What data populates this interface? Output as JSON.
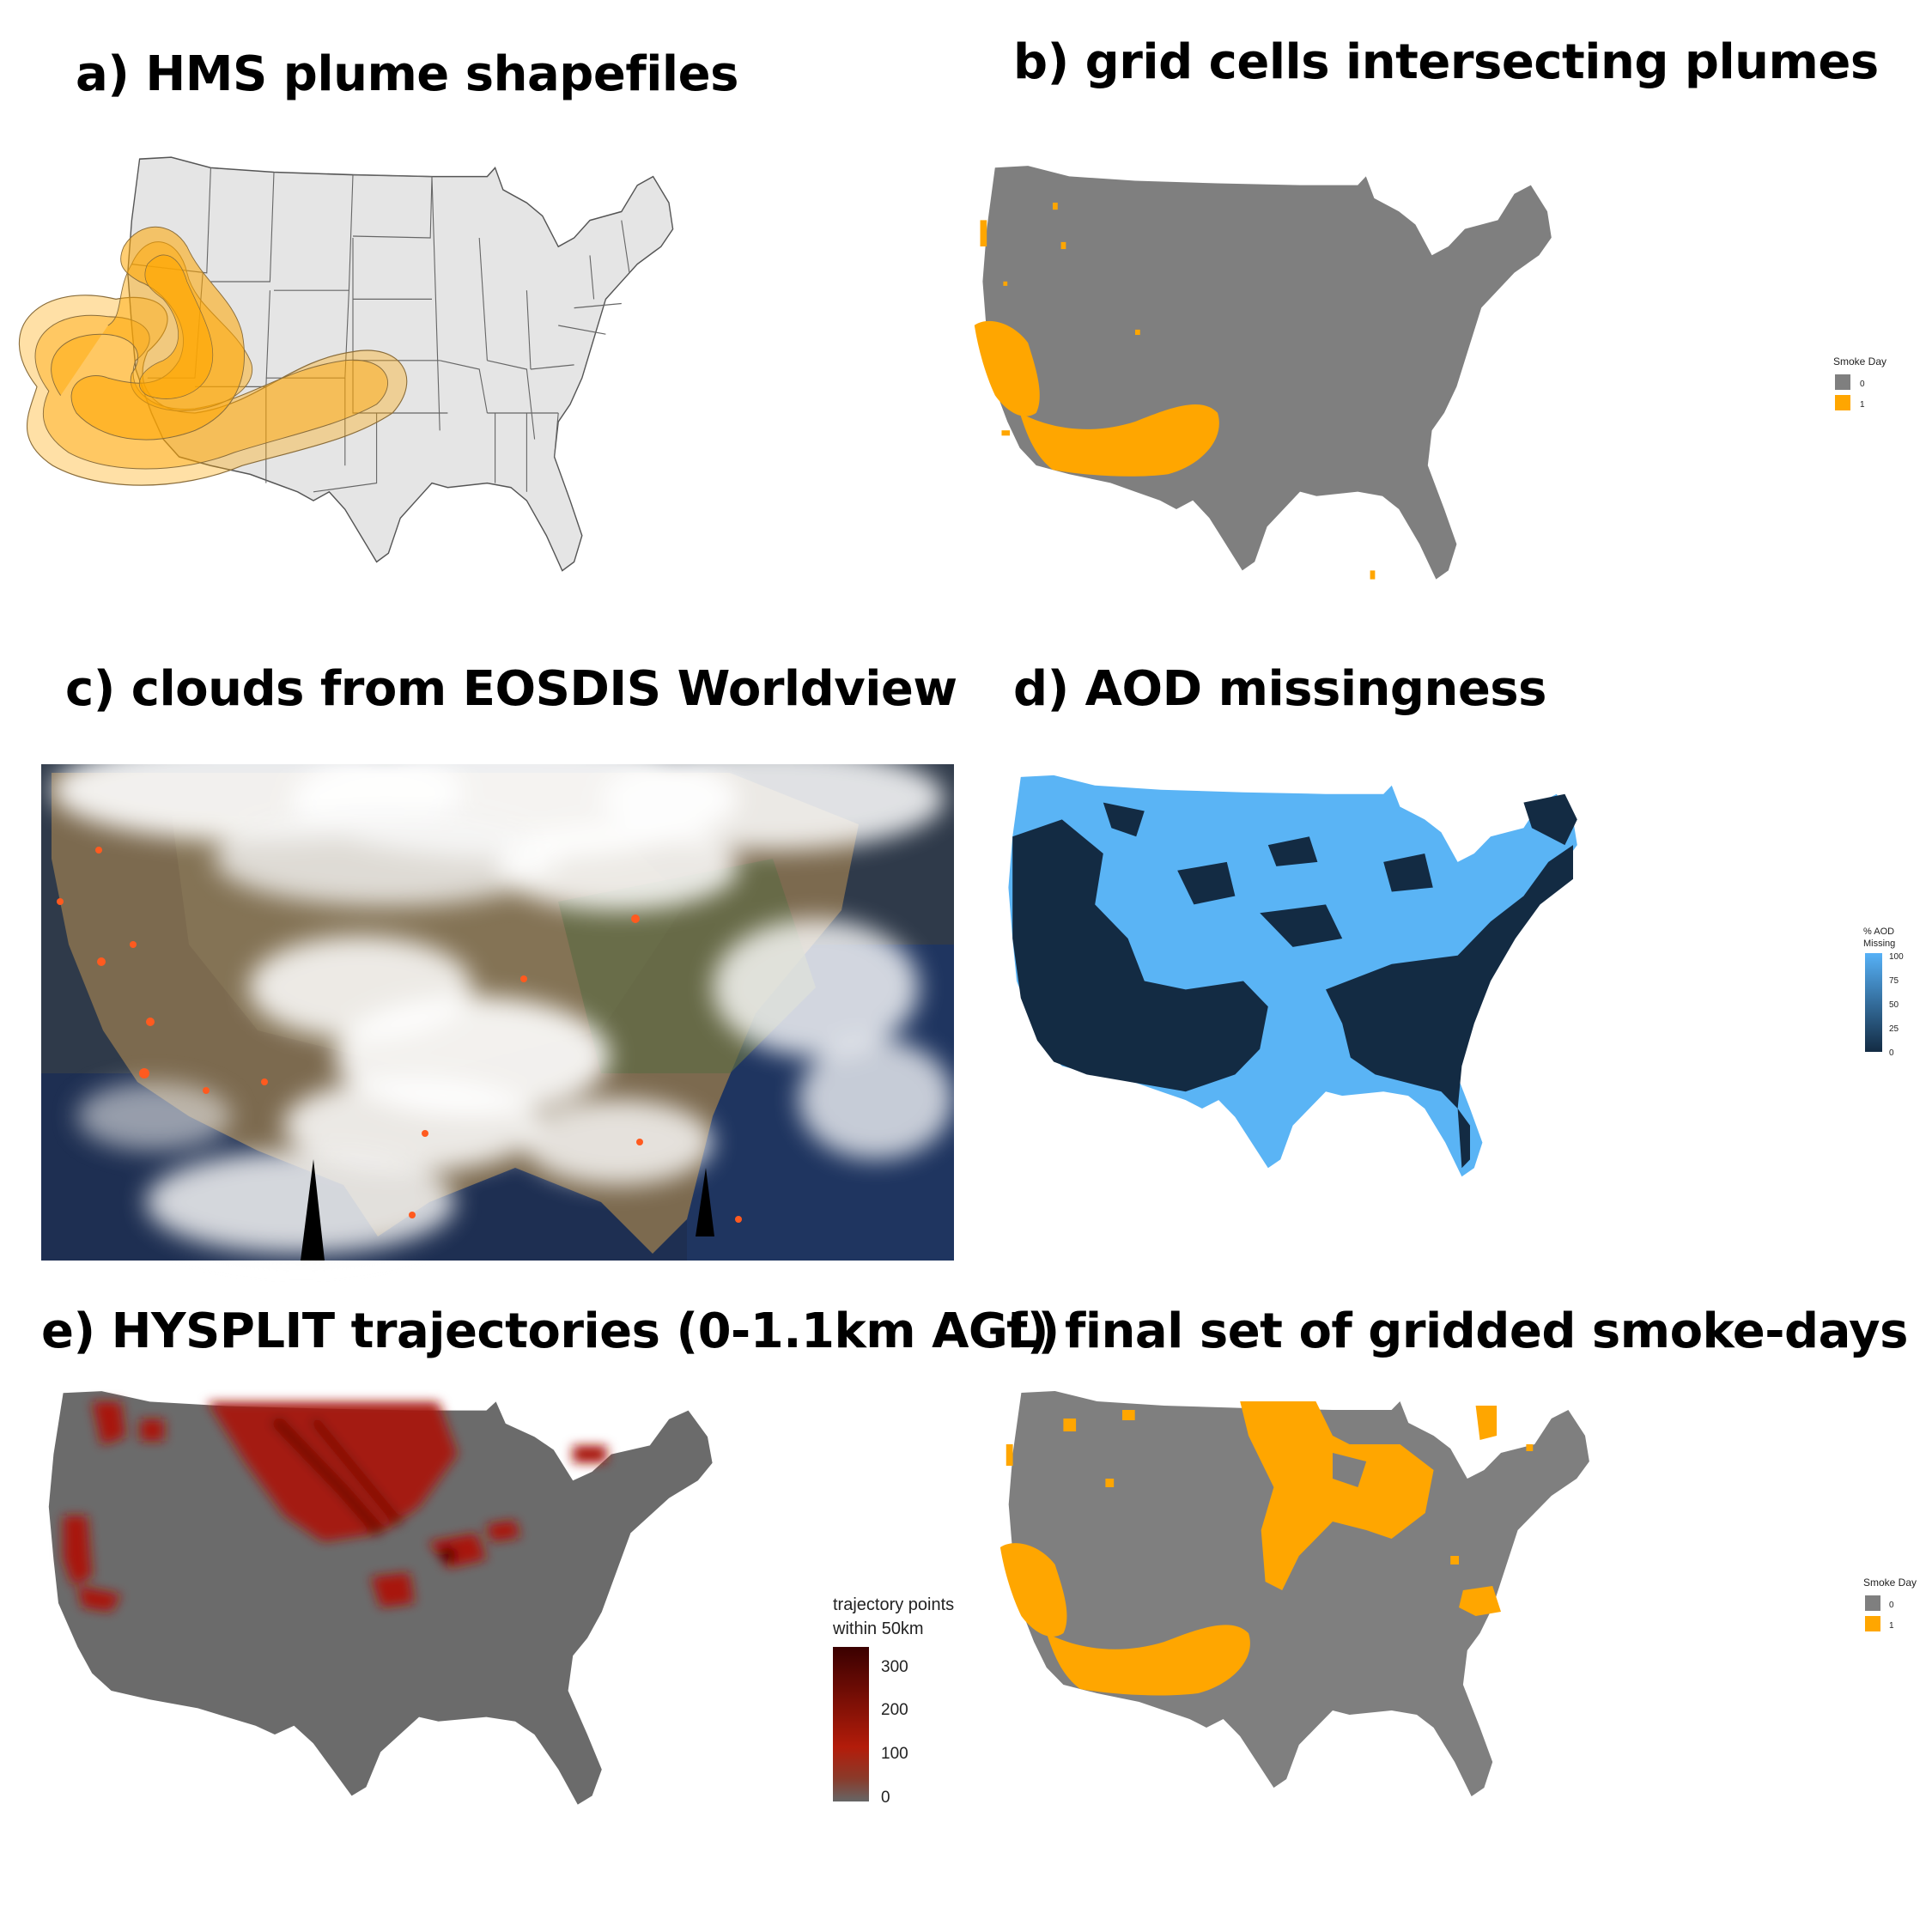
{
  "panels": {
    "a": {
      "title": "a) HMS plume shapefiles"
    },
    "b": {
      "title": "b) grid cells intersecting plumes",
      "legend": {
        "title": "Smoke Day",
        "items": [
          {
            "label": "0",
            "color": "#7f7f7f"
          },
          {
            "label": "1",
            "color": "#ffa600"
          }
        ]
      }
    },
    "c": {
      "title": "c) clouds from EOSDIS Worldview"
    },
    "d": {
      "title": "d) AOD missingness",
      "legend": {
        "title_line1": "% AOD",
        "title_line2": "Missing",
        "ticks": [
          "100",
          "75",
          "50",
          "25",
          "0"
        ],
        "color_low": "#132b43",
        "color_high": "#56b1f7"
      }
    },
    "e": {
      "title": "e) HYSPLIT trajectories (0-1.1km AGL)",
      "legend": {
        "title_line1": "trajectory points",
        "title_line2": "within 50km",
        "ticks": [
          "300",
          "200",
          "100",
          "0"
        ],
        "color_low": "#666666",
        "color_mid": "#b31c0a",
        "color_high": "#3a0000"
      }
    },
    "f": {
      "title": "f) final set of gridded smoke-days",
      "legend": {
        "title": "Smoke Day",
        "items": [
          {
            "label": "0",
            "color": "#7f7f7f"
          },
          {
            "label": "1",
            "color": "#ffa600"
          }
        ]
      }
    }
  },
  "colors": {
    "us_fill_a": "#e5e5e5",
    "grid_gray": "#7f7f7f",
    "smoke_orange": "#ffa600",
    "aod_dark": "#132b43",
    "aod_light": "#5ab4f5",
    "hysplit_gray": "#6b6b6b",
    "hysplit_red": "#a8170a"
  }
}
